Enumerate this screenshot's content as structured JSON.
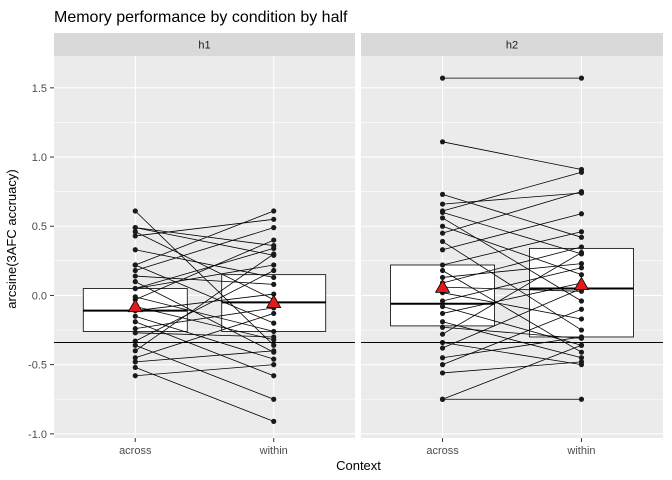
{
  "chart_data": {
    "type": "box",
    "title": "Memory performance by condition by half",
    "xlabel": "Context",
    "ylabel": "arcsine(3AFC accruacy)",
    "ylim": [
      -1.03,
      1.73
    ],
    "yticks": [
      -1.0,
      -0.5,
      0.0,
      0.5,
      1.0,
      1.5
    ],
    "ytick_labels": [
      "-1.0",
      "-0.5",
      "0.0",
      "0.5",
      "1.0",
      "1.5"
    ],
    "categories": [
      "across",
      "within"
    ],
    "hline": -0.34,
    "grid": true,
    "legend": "none",
    "colors": {
      "panel_bg": "#ebebeb",
      "grid": "#ffffff",
      "strip_bg": "#d9d9d9",
      "box_fill": "#ffffff",
      "line": "#000000",
      "point": "#1a1a1a",
      "mean_marker": "#e31a1c"
    },
    "panels": [
      {
        "name": "h1",
        "boxes": [
          {
            "category": "across",
            "q1": -0.26,
            "median": -0.11,
            "q3": 0.05,
            "mean": -0.08
          },
          {
            "category": "within",
            "q1": -0.26,
            "median": -0.05,
            "q3": 0.15,
            "mean": -0.05
          }
        ],
        "pairs": [
          [
            0.61,
            -0.36
          ],
          [
            0.49,
            0.36
          ],
          [
            0.49,
            0.29
          ],
          [
            0.46,
            -0.03
          ],
          [
            0.43,
            0.55
          ],
          [
            0.33,
            0.13
          ],
          [
            0.22,
            0.61
          ],
          [
            0.22,
            -0.2
          ],
          [
            0.18,
            0.49
          ],
          [
            0.14,
            0.08
          ],
          [
            0.1,
            -0.41
          ],
          [
            0.05,
            0.22
          ],
          [
            0.05,
            0.34
          ],
          [
            -0.01,
            -0.26
          ],
          [
            -0.03,
            0.4
          ],
          [
            -0.08,
            -0.32
          ],
          [
            -0.11,
            0.01
          ],
          [
            -0.15,
            -0.46
          ],
          [
            -0.19,
            -0.58
          ],
          [
            -0.24,
            -0.09
          ],
          [
            -0.27,
            -0.3
          ],
          [
            -0.33,
            0.18
          ],
          [
            -0.36,
            -0.75
          ],
          [
            -0.4,
            0.3
          ],
          [
            -0.45,
            -0.13
          ],
          [
            -0.48,
            -0.4
          ],
          [
            -0.52,
            -0.91
          ],
          [
            -0.58,
            -0.5
          ]
        ]
      },
      {
        "name": "h2",
        "boxes": [
          {
            "category": "across",
            "q1": -0.22,
            "median": -0.06,
            "q3": 0.22,
            "mean": 0.06
          },
          {
            "category": "within",
            "q1": -0.3,
            "median": 0.05,
            "q3": 0.34,
            "mean": 0.08
          }
        ],
        "pairs": [
          [
            1.57,
            1.57
          ],
          [
            1.11,
            0.91
          ],
          [
            0.73,
            0.42
          ],
          [
            0.66,
            0.74
          ],
          [
            0.61,
            0.89
          ],
          [
            0.6,
            0.3
          ],
          [
            0.56,
            -0.04
          ],
          [
            0.5,
            0.15
          ],
          [
            0.45,
            0.75
          ],
          [
            0.39,
            -0.25
          ],
          [
            0.33,
            0.59
          ],
          [
            0.22,
            0.46
          ],
          [
            0.18,
            -0.41
          ],
          [
            0.13,
            0.23
          ],
          [
            0.09,
            0.35
          ],
          [
            0.06,
            0.03
          ],
          [
            0.02,
            -0.17
          ],
          [
            -0.04,
            0.2
          ],
          [
            -0.08,
            -0.36
          ],
          [
            -0.13,
            0.09
          ],
          [
            -0.19,
            -0.45
          ],
          [
            -0.23,
            -0.31
          ],
          [
            -0.28,
            0.31
          ],
          [
            -0.34,
            -0.5
          ],
          [
            -0.38,
            0.05
          ],
          [
            -0.45,
            -0.3
          ],
          [
            -0.5,
            -0.1
          ],
          [
            -0.56,
            -0.48
          ],
          [
            -0.75,
            -0.75
          ],
          [
            -0.75,
            -0.36
          ]
        ]
      }
    ]
  }
}
